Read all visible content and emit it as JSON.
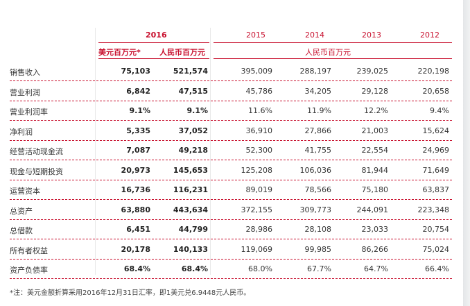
{
  "header": {
    "years": [
      "2016",
      "2015",
      "2014",
      "2013",
      "2012"
    ],
    "usd_unit": "美元百万元*",
    "rmb_unit": "人民币百万元",
    "history_unit": "人民币百万元"
  },
  "rows": [
    {
      "label": "销售收入",
      "usd": "75,103",
      "rmb": "521,574",
      "y2015": "395,009",
      "y2014": "288,197",
      "y2013": "239,025",
      "y2012": "220,198"
    },
    {
      "label": "营业利润",
      "usd": "6,842",
      "rmb": "47,515",
      "y2015": "45,786",
      "y2014": "34,205",
      "y2013": "29,128",
      "y2012": "20,658"
    },
    {
      "label": "营业利润率",
      "usd": "9.1%",
      "rmb": "9.1%",
      "y2015": "11.6%",
      "y2014": "11.9%",
      "y2013": "12.2%",
      "y2012": "9.4%"
    },
    {
      "label": "净利润",
      "usd": "5,335",
      "rmb": "37,052",
      "y2015": "36,910",
      "y2014": "27,866",
      "y2013": "21,003",
      "y2012": "15,624"
    },
    {
      "label": "经营活动现金流",
      "usd": "7,087",
      "rmb": "49,218",
      "y2015": "52,300",
      "y2014": "41,755",
      "y2013": "22,554",
      "y2012": "24,969"
    },
    {
      "label": "现金与短期投资",
      "usd": "20,973",
      "rmb": "145,653",
      "y2015": "125,208",
      "y2014": "106,036",
      "y2013": "81,944",
      "y2012": "71,649"
    },
    {
      "label": "运营资本",
      "usd": "16,736",
      "rmb": "116,231",
      "y2015": "89,019",
      "y2014": "78,566",
      "y2013": "75,180",
      "y2012": "63,837"
    },
    {
      "label": "总资产",
      "usd": "63,880",
      "rmb": "443,634",
      "y2015": "372,155",
      "y2014": "309,773",
      "y2013": "244,091",
      "y2012": "223,348"
    },
    {
      "label": "总借款",
      "usd": "6,451",
      "rmb": "44,799",
      "y2015": "28,986",
      "y2014": "28,108",
      "y2013": "23,033",
      "y2012": "20,754"
    },
    {
      "label": "所有者权益",
      "usd": "20,178",
      "rmb": "140,133",
      "y2015": "119,069",
      "y2014": "99,985",
      "y2013": "86,266",
      "y2012": "75,024"
    },
    {
      "label": "资产负债率",
      "usd": "68.4%",
      "rmb": "68.4%",
      "y2015": "68.0%",
      "y2014": "67.7%",
      "y2013": "64.7%",
      "y2012": "66.4%"
    }
  ],
  "footnote": "*注：美元金额折算采用2016年12月31日汇率，即1美元兑6.9448元人民币。"
}
